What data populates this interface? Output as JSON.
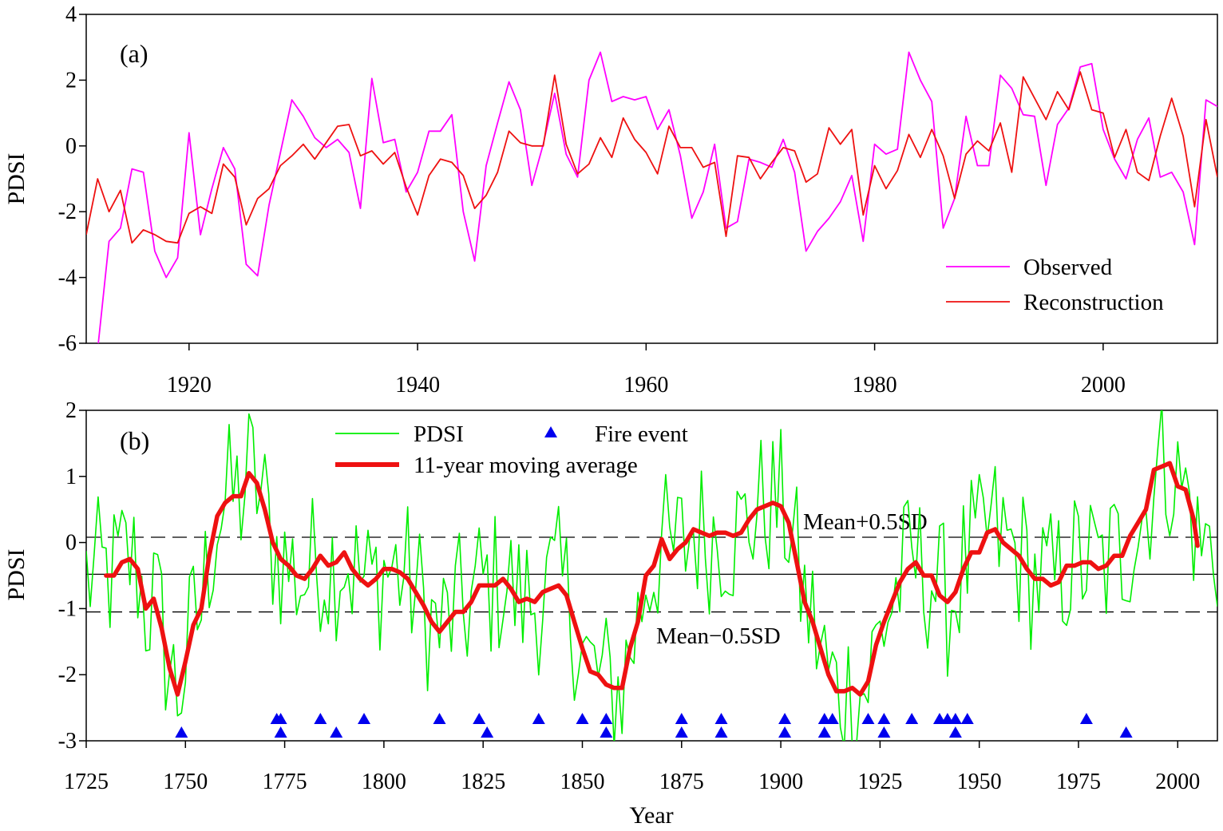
{
  "chart_data": [
    {
      "type": "line",
      "panel_label": "(a)",
      "xlabel": "",
      "ylabel": "PDSI",
      "xlim": [
        1911,
        2010
      ],
      "ylim": [
        -6,
        4
      ],
      "xticks": [
        "1920",
        "1940",
        "1960",
        "1980",
        "2000"
      ],
      "yticks": [
        "-6",
        "-4",
        "-2",
        "0",
        "2",
        "4"
      ],
      "legend_position": "bottom-right",
      "grid": false,
      "x": [
        1911,
        1912,
        1913,
        1914,
        1915,
        1916,
        1917,
        1918,
        1919,
        1920,
        1921,
        1922,
        1923,
        1924,
        1925,
        1926,
        1927,
        1928,
        1929,
        1930,
        1931,
        1932,
        1933,
        1934,
        1935,
        1936,
        1937,
        1938,
        1939,
        1940,
        1941,
        1942,
        1943,
        1944,
        1945,
        1946,
        1947,
        1948,
        1949,
        1950,
        1951,
        1952,
        1953,
        1954,
        1955,
        1956,
        1957,
        1958,
        1959,
        1960,
        1961,
        1962,
        1963,
        1964,
        1965,
        1966,
        1967,
        1968,
        1969,
        1970,
        1971,
        1972,
        1973,
        1974,
        1975,
        1976,
        1977,
        1978,
        1979,
        1980,
        1981,
        1982,
        1983,
        1984,
        1985,
        1986,
        1987,
        1988,
        1989,
        1990,
        1991,
        1992,
        1993,
        1994,
        1995,
        1996,
        1997,
        1998,
        1999,
        2000,
        2001,
        2002,
        2003,
        2004,
        2005,
        2006,
        2007,
        2008,
        2009,
        2010
      ],
      "series": [
        {
          "name": "Observed",
          "color": "#ff00ff",
          "values": [
            -6.2,
            -6.2,
            -2.9,
            -2.5,
            -0.7,
            -0.8,
            -3.2,
            -4.0,
            -3.4,
            0.4,
            -2.7,
            -1.3,
            -0.05,
            -0.7,
            -3.6,
            -3.95,
            -1.8,
            -0.2,
            1.4,
            0.9,
            0.25,
            -0.05,
            0.2,
            -0.2,
            -1.9,
            2.05,
            0.1,
            0.2,
            -1.4,
            -0.8,
            0.45,
            0.45,
            0.95,
            -2.0,
            -3.5,
            -0.6,
            0.7,
            1.95,
            1.1,
            -1.2,
            0.05,
            1.6,
            -0.25,
            -0.95,
            2.0,
            2.85,
            1.35,
            1.5,
            1.4,
            1.5,
            0.5,
            1.1,
            -0.3,
            -2.2,
            -1.4,
            0.05,
            -2.5,
            -2.3,
            -0.4,
            -0.5,
            -0.65,
            0.2,
            -0.8,
            -3.2,
            -2.6,
            -2.2,
            -1.7,
            -0.9,
            -2.9,
            0.05,
            -0.25,
            -0.1,
            2.85,
            2.0,
            1.35,
            -2.5,
            -1.6,
            0.9,
            -0.6,
            -0.6,
            2.15,
            1.75,
            0.95,
            0.9,
            -1.2,
            0.65,
            1.15,
            2.4,
            2.5,
            0.5,
            -0.4,
            -1.0,
            0.2,
            0.85,
            -0.95,
            -0.8,
            -1.4,
            -3.0,
            1.4,
            1.2
          ]
        },
        {
          "name": "Reconstruction",
          "color": "#ee1111",
          "values": [
            -2.7,
            -1.0,
            -2.0,
            -1.35,
            -2.95,
            -2.55,
            -2.7,
            -2.9,
            -2.95,
            -2.05,
            -1.85,
            -2.05,
            -0.55,
            -0.95,
            -2.4,
            -1.6,
            -1.3,
            -0.6,
            -0.3,
            0.05,
            -0.4,
            0.1,
            0.6,
            0.65,
            -0.3,
            -0.15,
            -0.55,
            -0.2,
            -1.25,
            -2.1,
            -0.9,
            -0.4,
            -0.5,
            -0.9,
            -1.9,
            -1.5,
            -0.8,
            0.45,
            0.1,
            0.0,
            0.0,
            2.15,
            0.05,
            -0.85,
            -0.55,
            0.25,
            -0.35,
            0.85,
            0.2,
            -0.2,
            -0.85,
            0.6,
            -0.05,
            -0.05,
            -0.65,
            -0.5,
            -2.75,
            -0.3,
            -0.35,
            -1.0,
            -0.5,
            -0.05,
            -0.15,
            -1.1,
            -0.85,
            0.55,
            0.05,
            0.5,
            -2.1,
            -0.6,
            -1.3,
            -0.75,
            0.35,
            -0.35,
            0.5,
            -0.3,
            -1.6,
            -0.25,
            0.15,
            -0.15,
            0.7,
            -0.8,
            2.1,
            1.45,
            0.8,
            1.65,
            1.1,
            2.25,
            1.1,
            1.0,
            -0.35,
            0.5,
            -0.8,
            -1.05,
            0.3,
            1.45,
            0.3,
            -1.85,
            0.8,
            -0.95
          ]
        }
      ]
    },
    {
      "type": "line",
      "panel_label": "(b)",
      "xlabel": "Year",
      "ylabel": "PDSI",
      "xlim": [
        1725,
        2010
      ],
      "ylim": [
        -3,
        2
      ],
      "xticks": [
        "1725",
        "1750",
        "1775",
        "1800",
        "1825",
        "1850",
        "1875",
        "1900",
        "1925",
        "1950",
        "1975",
        "2000"
      ],
      "yticks": [
        "-3",
        "-2",
        "-1",
        "0",
        "1",
        "2"
      ],
      "grid": false,
      "reference_lines": {
        "mean": -0.48,
        "mean_plus_half_sd": 0.08,
        "mean_minus_half_sd": -1.05,
        "label_plus": "Mean+0.5SD",
        "label_minus": "Mean−0.5SD"
      },
      "legend": {
        "pdsi": "PDSI",
        "fire": "Fire event",
        "avg": "11-year moving average"
      },
      "colors": {
        "pdsi": "#00ee00",
        "avg": "#ee1111",
        "fire": "#0000ee"
      },
      "moving_average": {
        "x": [
          1730,
          1732,
          1734,
          1736,
          1738,
          1740,
          1742,
          1744,
          1746,
          1748,
          1750,
          1752,
          1754,
          1756,
          1758,
          1760,
          1762,
          1764,
          1766,
          1768,
          1770,
          1772,
          1774,
          1776,
          1778,
          1780,
          1782,
          1784,
          1786,
          1788,
          1790,
          1792,
          1794,
          1796,
          1798,
          1800,
          1802,
          1804,
          1806,
          1808,
          1810,
          1812,
          1814,
          1816,
          1818,
          1820,
          1822,
          1824,
          1826,
          1828,
          1830,
          1832,
          1834,
          1836,
          1838,
          1840,
          1842,
          1844,
          1846,
          1848,
          1850,
          1852,
          1854,
          1856,
          1858,
          1860,
          1862,
          1864,
          1866,
          1868,
          1870,
          1872,
          1874,
          1876,
          1878,
          1880,
          1882,
          1884,
          1886,
          1888,
          1890,
          1892,
          1894,
          1896,
          1898,
          1900,
          1902,
          1904,
          1906,
          1908,
          1910,
          1912,
          1914,
          1916,
          1918,
          1920,
          1922,
          1924,
          1926,
          1928,
          1930,
          1932,
          1934,
          1936,
          1938,
          1940,
          1942,
          1944,
          1946,
          1948,
          1950,
          1952,
          1954,
          1956,
          1958,
          1960,
          1962,
          1964,
          1966,
          1968,
          1970,
          1972,
          1974,
          1976,
          1978,
          1980,
          1982,
          1984,
          1986,
          1988,
          1990,
          1992,
          1994,
          1996,
          1998,
          2000,
          2002,
          2004,
          2005
        ],
        "values": [
          -0.5,
          -0.5,
          -0.3,
          -0.25,
          -0.4,
          -1.0,
          -0.85,
          -1.3,
          -1.9,
          -2.3,
          -1.8,
          -1.25,
          -1.0,
          -0.2,
          0.4,
          0.6,
          0.7,
          0.7,
          1.05,
          0.9,
          0.5,
          0.0,
          -0.25,
          -0.35,
          -0.5,
          -0.55,
          -0.4,
          -0.2,
          -0.35,
          -0.3,
          -0.15,
          -0.4,
          -0.55,
          -0.65,
          -0.55,
          -0.4,
          -0.4,
          -0.45,
          -0.55,
          -0.75,
          -0.95,
          -1.2,
          -1.35,
          -1.2,
          -1.05,
          -1.05,
          -0.9,
          -0.65,
          -0.65,
          -0.65,
          -0.55,
          -0.7,
          -0.9,
          -0.85,
          -0.9,
          -0.75,
          -0.7,
          -0.65,
          -0.8,
          -1.2,
          -1.6,
          -1.95,
          -2.0,
          -2.15,
          -2.2,
          -2.2,
          -1.6,
          -1.2,
          -0.5,
          -0.35,
          0.05,
          -0.25,
          -0.1,
          0.0,
          0.2,
          0.15,
          0.1,
          0.15,
          0.15,
          0.1,
          0.15,
          0.35,
          0.5,
          0.55,
          0.6,
          0.55,
          0.3,
          -0.3,
          -0.9,
          -1.2,
          -1.6,
          -2.0,
          -2.25,
          -2.25,
          -2.2,
          -2.3,
          -2.1,
          -1.55,
          -1.2,
          -0.9,
          -0.6,
          -0.4,
          -0.3,
          -0.5,
          -0.5,
          -0.8,
          -0.9,
          -0.75,
          -0.4,
          -0.15,
          -0.15,
          0.15,
          0.2,
          0.0,
          -0.1,
          -0.2,
          -0.4,
          -0.55,
          -0.55,
          -0.65,
          -0.6,
          -0.35,
          -0.35,
          -0.3,
          -0.3,
          -0.4,
          -0.35,
          -0.2,
          -0.2,
          0.1,
          0.3,
          0.5,
          1.1,
          1.15,
          1.2,
          0.85,
          0.8,
          0.35,
          -0.05
        ]
      },
      "fire_events_upper": [
        1773,
        1774,
        1784,
        1795,
        1814,
        1824,
        1839,
        1850,
        1856,
        1875,
        1885,
        1901,
        1911,
        1913,
        1922,
        1926,
        1933,
        1940,
        1942,
        1944,
        1947,
        1977
      ],
      "fire_events_lower": [
        1749,
        1774,
        1788,
        1826,
        1856,
        1875,
        1885,
        1901,
        1911,
        1926,
        1944,
        1987
      ]
    }
  ]
}
